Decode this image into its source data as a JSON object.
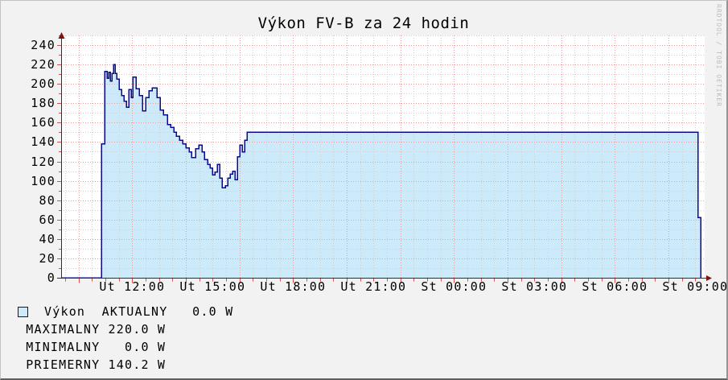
{
  "title": "Výkon FV-B za 24 hodin",
  "watermark": "RRDTOOL / TOBI OETIKER",
  "legend": {
    "series_label": "Výkon",
    "line1": "Výkon  AKTUALNY   0.0 W",
    "line2": " MAXIMALNY 220.0 W",
    "line3": " MINIMALNY   0.0 W",
    "line4": " PRIEMERNY 140.2 W"
  },
  "chart_data": {
    "type": "area",
    "title": "Výkon FV-B za 24 hodin",
    "unit": "W",
    "x_span_hours": 24,
    "ylim": [
      0,
      250
    ],
    "y_ticks": [
      0,
      20,
      40,
      60,
      80,
      100,
      120,
      140,
      160,
      180,
      200,
      220,
      240
    ],
    "x_ticks": [
      {
        "label": "Ut 12:00",
        "t": 2.65
      },
      {
        "label": "Ut 15:00",
        "t": 5.65
      },
      {
        "label": "Ut 18:00",
        "t": 8.65
      },
      {
        "label": "Ut 21:00",
        "t": 11.65
      },
      {
        "label": "St 00:00",
        "t": 14.65
      },
      {
        "label": "St 03:00",
        "t": 17.65
      },
      {
        "label": "St 06:00",
        "t": 20.65
      },
      {
        "label": "St 09:00",
        "t": 23.65
      }
    ],
    "grid": {
      "x_minor_step_hours": 0.5,
      "x_minor_anchor_t": 0.15,
      "x_major_step_hours": 2.0,
      "x_major_anchor_t": 0.65,
      "y_minor_step": 10,
      "y_major_step": 20
    },
    "series": [
      {
        "name": "Výkon",
        "steps_t_hours_watts": [
          [
            0.0,
            0
          ],
          [
            1.5,
            138
          ],
          [
            1.62,
            213
          ],
          [
            1.71,
            206
          ],
          [
            1.77,
            212
          ],
          [
            1.83,
            203
          ],
          [
            1.89,
            211
          ],
          [
            1.95,
            220
          ],
          [
            2.01,
            211
          ],
          [
            2.07,
            205
          ],
          [
            2.16,
            194
          ],
          [
            2.25,
            188
          ],
          [
            2.34,
            182
          ],
          [
            2.43,
            176
          ],
          [
            2.52,
            194
          ],
          [
            2.61,
            186
          ],
          [
            2.67,
            207
          ],
          [
            2.79,
            195
          ],
          [
            2.91,
            188
          ],
          [
            3.03,
            172
          ],
          [
            3.15,
            186
          ],
          [
            3.27,
            193
          ],
          [
            3.39,
            196
          ],
          [
            3.57,
            186
          ],
          [
            3.69,
            173
          ],
          [
            3.81,
            168
          ],
          [
            3.96,
            158
          ],
          [
            4.08,
            155
          ],
          [
            4.2,
            150
          ],
          [
            4.29,
            146
          ],
          [
            4.41,
            142
          ],
          [
            4.53,
            138
          ],
          [
            4.65,
            134
          ],
          [
            4.77,
            130
          ],
          [
            4.86,
            124
          ],
          [
            5.01,
            133
          ],
          [
            5.13,
            137
          ],
          [
            5.25,
            130
          ],
          [
            5.34,
            122
          ],
          [
            5.46,
            117
          ],
          [
            5.55,
            113
          ],
          [
            5.64,
            106
          ],
          [
            5.73,
            109
          ],
          [
            5.82,
            117
          ],
          [
            5.91,
            103
          ],
          [
            6.0,
            93
          ],
          [
            6.12,
            95
          ],
          [
            6.21,
            103
          ],
          [
            6.3,
            107
          ],
          [
            6.39,
            110
          ],
          [
            6.48,
            101
          ],
          [
            6.57,
            125
          ],
          [
            6.66,
            137
          ],
          [
            6.75,
            130
          ],
          [
            6.84,
            142
          ],
          [
            6.93,
            150
          ],
          [
            23.75,
            62
          ],
          [
            23.85,
            0
          ]
        ]
      }
    ],
    "stats": {
      "AKTUALNY": "0.0 W",
      "MAXIMALNY": "220.0 W",
      "MINIMALNY": "0.0 W",
      "PRIEMERNY": "140.2 W"
    }
  },
  "colors": {
    "canvas_bg": "#f2f2f2",
    "plot_bg": "#ffffff",
    "area_fill": "#cdeafa",
    "line": "#0a0a90",
    "grid_minor": "#d0d0d0",
    "grid_major": "#f19a9a",
    "tick": "#d94f4f",
    "axis": "#2f2f2f",
    "arrow": "#7c1414",
    "watermark": "#bdbdbd",
    "text": "#000000"
  }
}
